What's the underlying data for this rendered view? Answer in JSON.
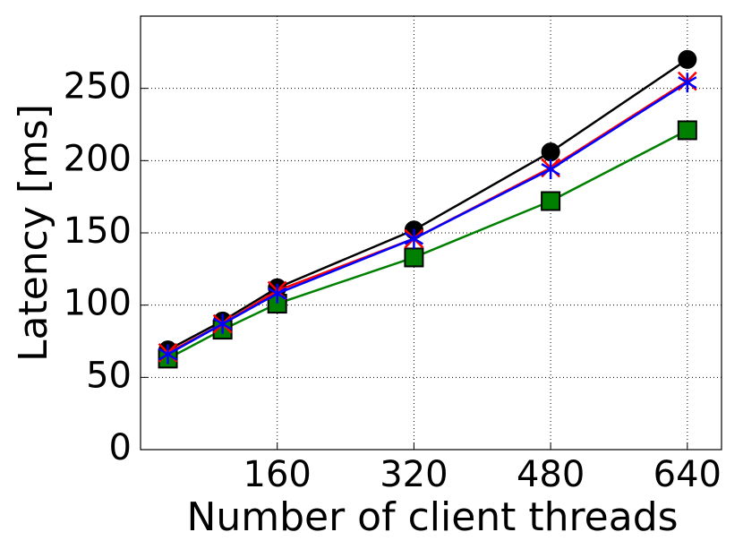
{
  "chart_data": {
    "type": "line",
    "x_label": "Number of client threads",
    "y_label": "Latency [ms]",
    "x": [
      32,
      96,
      160,
      320,
      480,
      640
    ],
    "series": [
      {
        "color": "#000000",
        "marker": "circle",
        "values": [
          69,
          89,
          112,
          152,
          206,
          270
        ]
      },
      {
        "color": "#008000",
        "marker": "square",
        "values": [
          63,
          83,
          101,
          133,
          172,
          221
        ]
      },
      {
        "color": "#ff0000",
        "marker": "x",
        "values": [
          67,
          87,
          110,
          146,
          195,
          255
        ]
      },
      {
        "color": "#0000ff",
        "marker": "star",
        "values": [
          66,
          87,
          108,
          146,
          194,
          254
        ]
      }
    ],
    "xlim": [
      0,
      680
    ],
    "xticks": [
      160,
      320,
      480,
      640
    ],
    "ylim": [
      0,
      300
    ],
    "yticks": [
      0,
      50,
      100,
      150,
      200,
      250
    ],
    "grid": true
  }
}
